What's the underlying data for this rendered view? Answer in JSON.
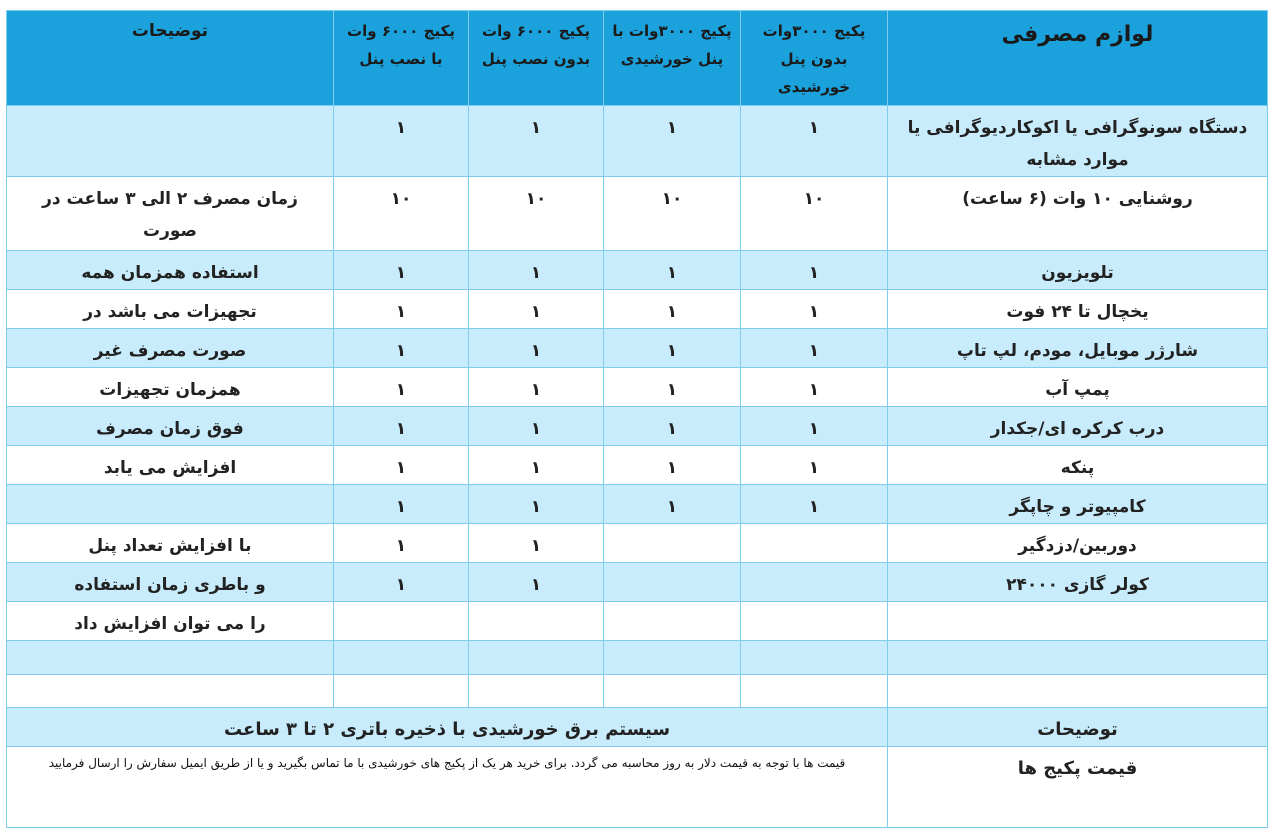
{
  "table": {
    "header": [
      "لوازم مصرفی",
      "پکیج ۳۰۰۰وات بدون پنل خورشیدی",
      "پکیج ۳۰۰۰وات با پنل خورشیدی",
      "پکیج ۶۰۰۰ وات بدون نصب پنل",
      "پکیج ۶۰۰۰ وات با نصب پنل",
      "توضیحات"
    ],
    "rows": [
      [
        "دستگاه سونوگرافی یا اکوکاردیوگرافی یا موارد مشابه",
        "۱",
        "۱",
        "۱",
        "۱",
        null
      ],
      [
        "روشنایی ۱۰ وات (۶ ساعت)",
        "۱۰",
        "۱۰",
        "۱۰",
        "۱۰",
        "زمان مصرف ۲ الی ۳ ساعت  در صورت"
      ],
      [
        "تلویزیون",
        "۱",
        "۱",
        "۱",
        "۱",
        "استفاده همزمان همه"
      ],
      [
        "یخچال تا ۲۴ فوت",
        "۱",
        "۱",
        "۱",
        "۱",
        "تجهیزات می باشد در"
      ],
      [
        "شارژر موبایل، مودم،  لپ تاپ",
        "۱",
        "۱",
        "۱",
        "۱",
        "صورت مصرف غیر"
      ],
      [
        "پمپ آب",
        "۱",
        "۱",
        "۱",
        "۱",
        "همزمان تجهیزات"
      ],
      [
        "درب کرکره ای/جکدار",
        "۱",
        "۱",
        "۱",
        "۱",
        "فوق زمان مصرف"
      ],
      [
        "پنکه",
        "۱",
        "۱",
        "۱",
        "۱",
        "افزایش می یابد"
      ],
      [
        "کامپیوتر و چاپگر",
        "۱",
        "۱",
        "۱",
        "۱",
        null
      ],
      [
        "دوربین/دزدگیر",
        null,
        null,
        "۱",
        "۱",
        "با افزایش تعداد پنل"
      ],
      [
        "کولر گازی ۲۴۰۰۰",
        null,
        null,
        "۱",
        "۱",
        "و باطری زمان استفاده"
      ],
      [
        null,
        null,
        null,
        null,
        null,
        "را می توان افزایش داد"
      ],
      [
        null,
        null,
        null,
        null,
        null,
        null
      ],
      [
        null,
        null,
        null,
        null,
        null,
        null
      ]
    ],
    "footer": [
      [
        "توضیحات",
        "سیستم برق خورشیدی با ذخیره باتری ۲ تا ۳  ساعت"
      ],
      [
        "قیمت پکیج ها",
        "قیمت ها با توجه به قیمت دلار به روز محاسبه می گردد. برای خرید هر یک از پکیج های خورشیدی با ما تماس بگیرید و یا از طریق ایمیل سفارش را ارسال فرمایید"
      ]
    ]
  }
}
